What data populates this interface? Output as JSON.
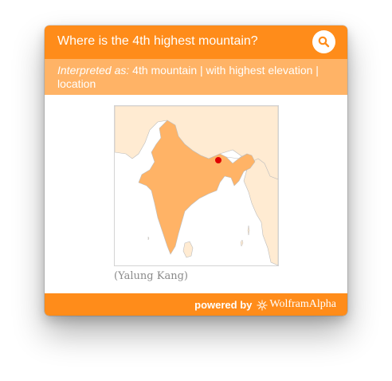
{
  "header": {
    "query": "Where is the 4th highest mountain?",
    "search_icon": "search-icon"
  },
  "interpretation": {
    "prefix": "Interpreted as:",
    "text": "4th mountain | with highest elevation | location"
  },
  "result": {
    "caption": "(Yalung Kang)",
    "marker_color": "#e00000",
    "country_fill": "#ffb366",
    "neighbor_fill": "#ffebd2"
  },
  "footer": {
    "powered_label": "powered by",
    "brand_name": "WolframAlpha",
    "brand_icon": "wolfram-spikey-icon"
  },
  "colors": {
    "accent": "#ff8c1a",
    "accent_light": "#ffb366"
  }
}
